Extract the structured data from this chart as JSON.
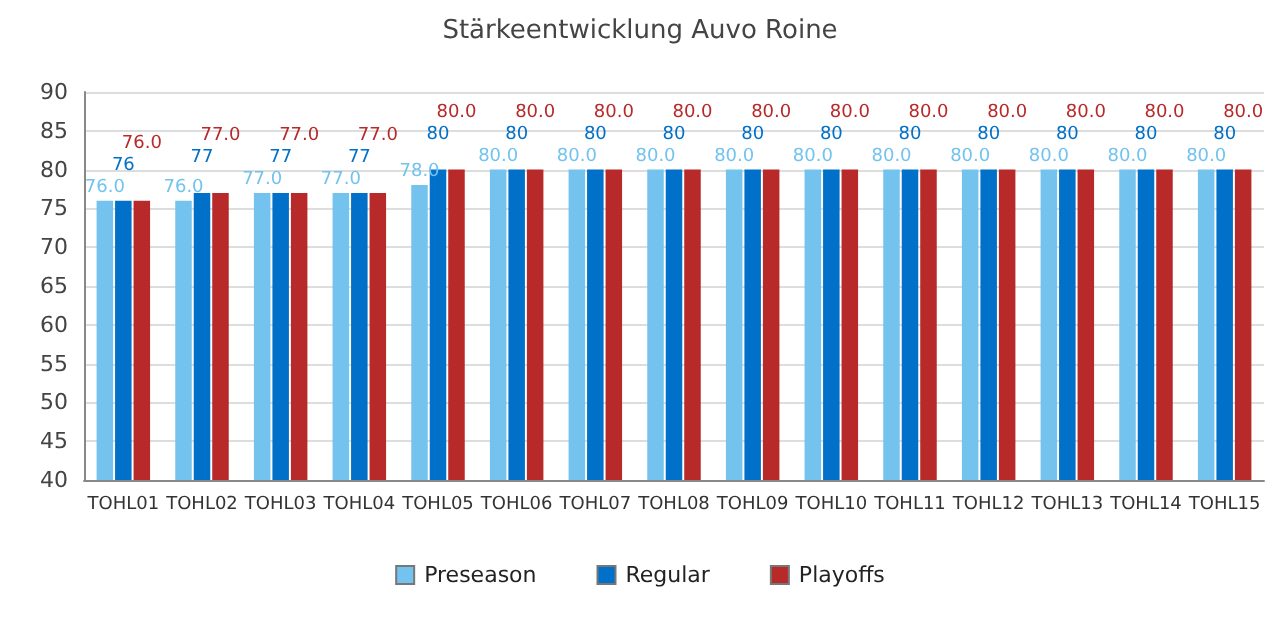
{
  "chart_data": {
    "type": "bar",
    "title": "Stärkeentwicklung Auvo Roine",
    "categories": [
      "TOHL01",
      "TOHL02",
      "TOHL03",
      "TOHL04",
      "TOHL05",
      "TOHL06",
      "TOHL07",
      "TOHL08",
      "TOHL09",
      "TOHL10",
      "TOHL11",
      "TOHL12",
      "TOHL13",
      "TOHL14",
      "TOHL15"
    ],
    "series": [
      {
        "name": "Preseason",
        "color": "#73c3ee",
        "values": [
          76,
          76,
          77,
          77,
          78,
          80,
          80,
          80,
          80,
          80,
          80,
          80,
          80,
          80,
          80
        ],
        "value_labels": [
          "76.0",
          "76.0",
          "77.0",
          "77.0",
          "78.0",
          "80.0",
          "80.0",
          "80.0",
          "80.0",
          "80.0",
          "80.0",
          "80.0",
          "80.0",
          "80.0",
          "80.0"
        ]
      },
      {
        "name": "Regular",
        "color": "#0070c8",
        "values": [
          76,
          77,
          77,
          77,
          80,
          80,
          80,
          80,
          80,
          80,
          80,
          80,
          80,
          80,
          80
        ],
        "value_labels": [
          "76",
          "77",
          "77",
          "77",
          "80",
          "80",
          "80",
          "80",
          "80",
          "80",
          "80",
          "80",
          "80",
          "80",
          "80"
        ]
      },
      {
        "name": "Playoffs",
        "color": "#b8292a",
        "values": [
          76,
          77,
          77,
          77,
          80,
          80,
          80,
          80,
          80,
          80,
          80,
          80,
          80,
          80,
          80
        ],
        "value_labels": [
          "76.0",
          "77.0",
          "77.0",
          "77.0",
          "80.0",
          "80.0",
          "80.0",
          "80.0",
          "80.0",
          "80.0",
          "80.0",
          "80.0",
          "80.0",
          "80.0",
          "80.0"
        ]
      }
    ],
    "ylim": [
      40,
      90
    ],
    "yticks": [
      40,
      45,
      50,
      55,
      60,
      65,
      70,
      75,
      80,
      85,
      90
    ],
    "grid": "y",
    "legend": "bottom"
  }
}
